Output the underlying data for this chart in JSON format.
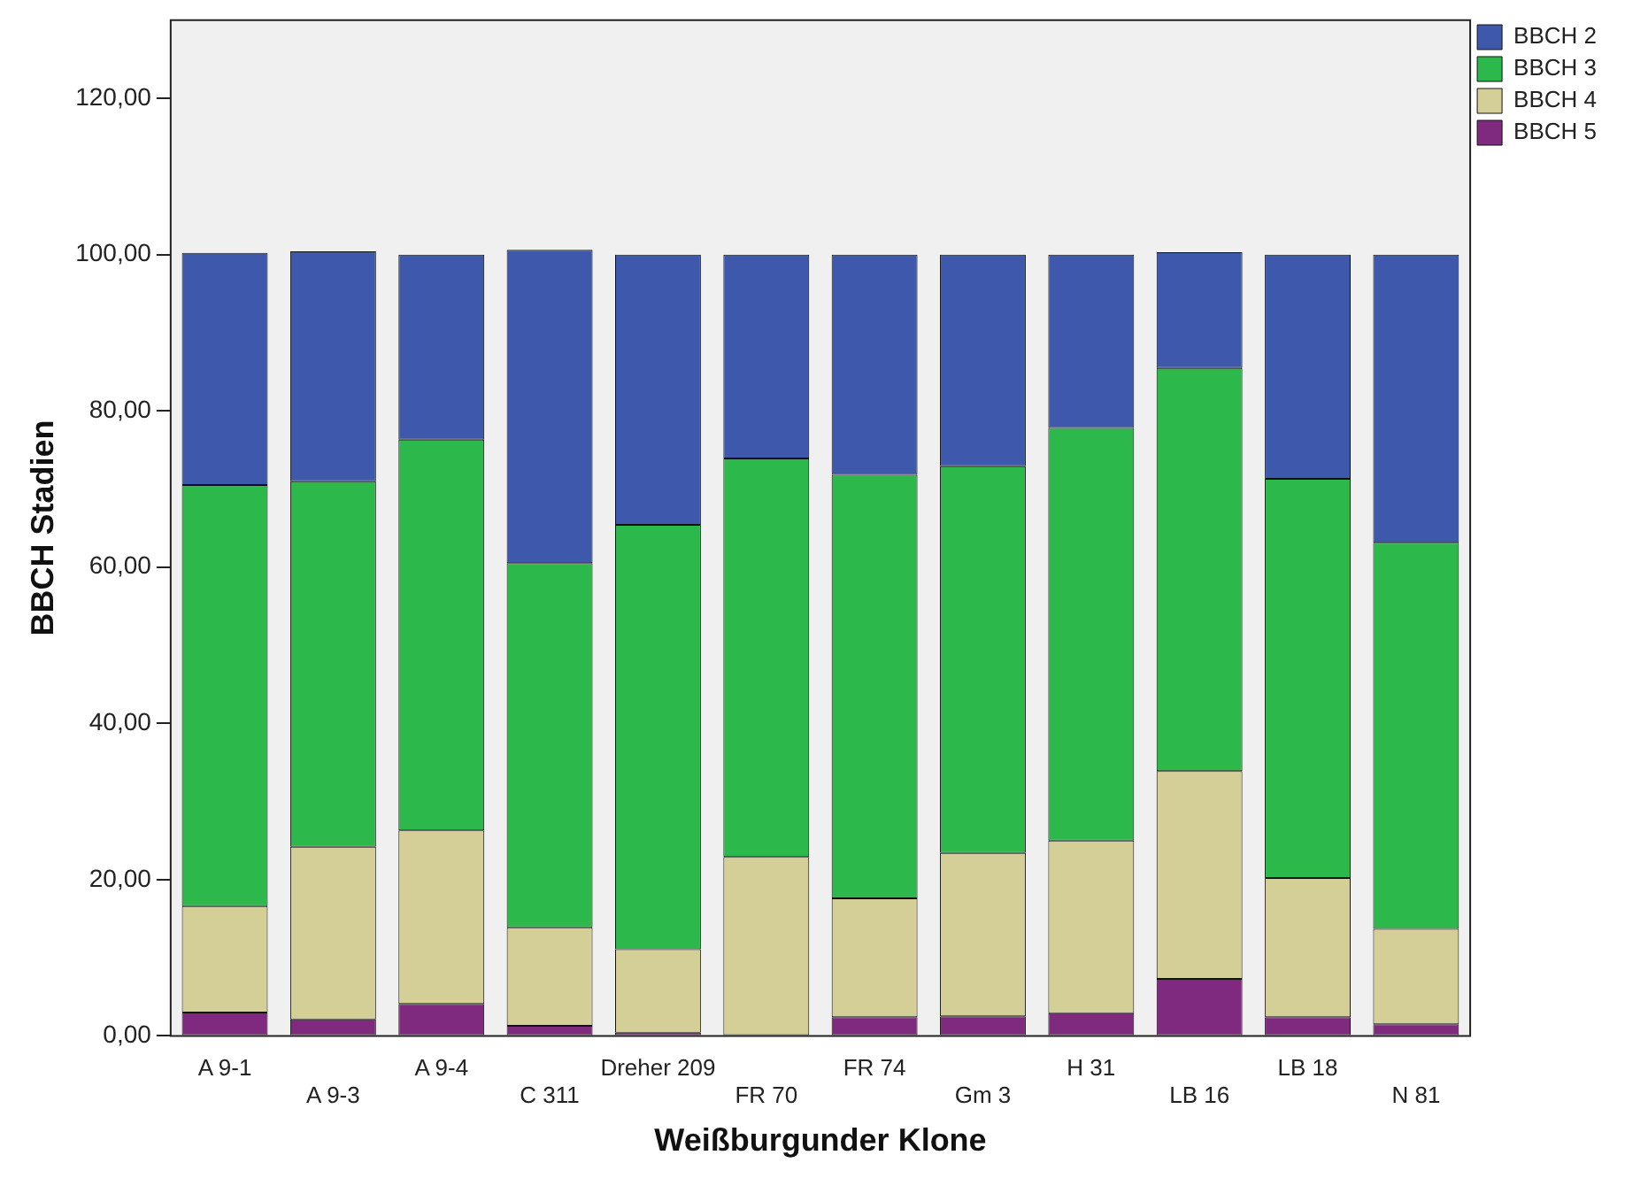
{
  "chart_data": {
    "type": "bar",
    "stacked": true,
    "xlabel": "Weißburgunder Klone",
    "ylabel": "BBCH Stadien",
    "categories": [
      "A 9-1",
      "A 9-3",
      "A 9-4",
      "C 311",
      "Dreher 209",
      "FR 70",
      "FR 74",
      "Gm 3",
      "H 31",
      "LB 16",
      "LB 18",
      "N 81"
    ],
    "series": [
      {
        "name": "BBCH 5",
        "color": "#7f2a7f",
        "values": [
          3.0,
          2.1,
          4.1,
          1.3,
          0.4,
          0,
          2.4,
          2.5,
          2.9,
          7.3,
          2.4,
          1.5
        ]
      },
      {
        "name": "BBCH 4",
        "color": "#d4ce97",
        "values": [
          13.6,
          22.1,
          22.2,
          12.6,
          10.7,
          22.9,
          15.2,
          20.9,
          22.1,
          26.6,
          17.8,
          12.2
        ]
      },
      {
        "name": "BBCH 3",
        "color": "#2db84b",
        "values": [
          53.9,
          46.8,
          50.0,
          46.6,
          54.3,
          51.0,
          54.2,
          49.5,
          52.8,
          51.6,
          51.1,
          49.4
        ]
      },
      {
        "name": "BBCH 2",
        "color": "#3e58ac",
        "values": [
          29.7,
          29.4,
          23.7,
          40.1,
          34.6,
          26.1,
          28.2,
          27.1,
          22.2,
          14.8,
          28.7,
          36.9
        ]
      }
    ],
    "ylim": [
      0,
      130
    ],
    "yticks": [
      {
        "value": 0,
        "label": "0,00"
      },
      {
        "value": 20,
        "label": "20,00"
      },
      {
        "value": 40,
        "label": "40,00"
      },
      {
        "value": 60,
        "label": "60,00"
      },
      {
        "value": 80,
        "label": "80,00"
      },
      {
        "value": 100,
        "label": "100,00"
      },
      {
        "value": 120,
        "label": "120,00"
      }
    ],
    "grid": false,
    "legend": "top right"
  }
}
